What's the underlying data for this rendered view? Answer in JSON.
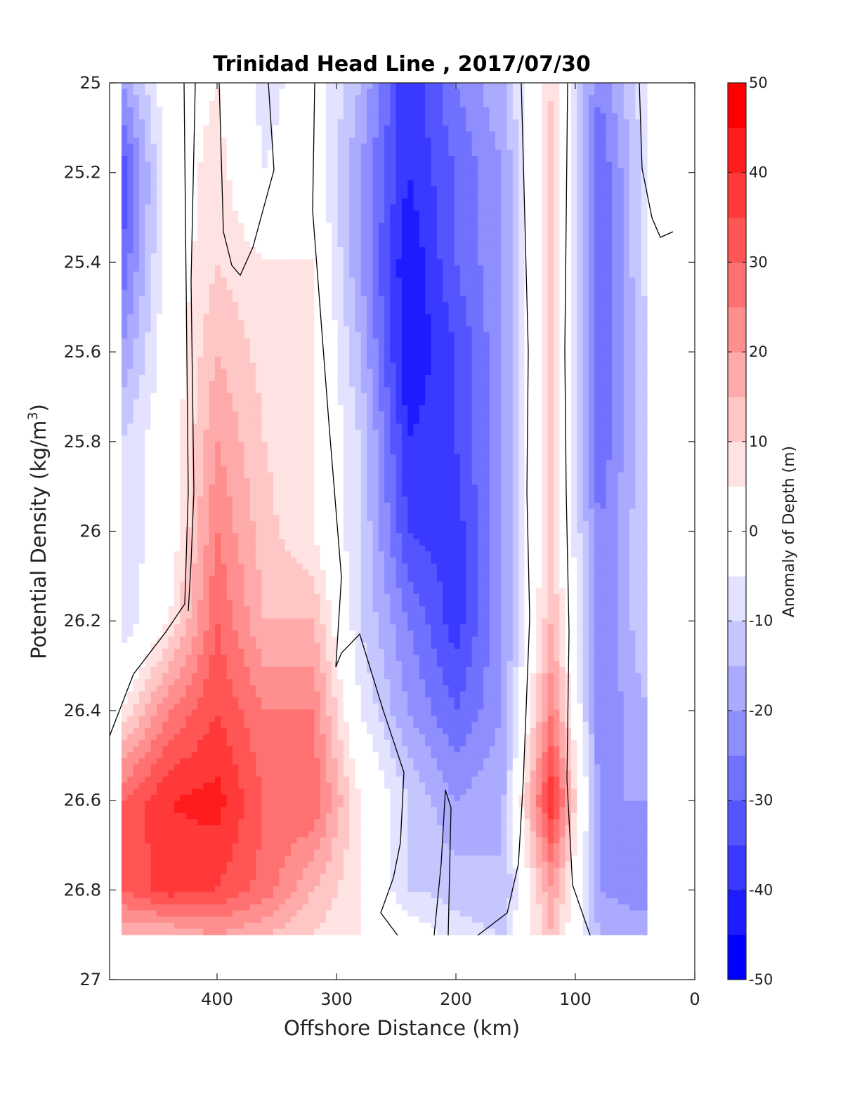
{
  "chart_data": {
    "type": "heatmap",
    "title": "Trinidad Head Line , 2017/07/30",
    "xlabel": "Offshore Distance (km)",
    "ylabel": "Potential Density (kg/m",
    "ylabel_sup": "3",
    "ylabel_close": ")",
    "colorbar_label": "Anomaly of Depth (m)",
    "xlim": [
      490,
      0
    ],
    "ylim": [
      25,
      27
    ],
    "x_ticks": [
      "400",
      "300",
      "200",
      "100",
      "0"
    ],
    "y_ticks": [
      "25",
      "25.2",
      "25.4",
      "25.6",
      "25.8",
      "26",
      "26.2",
      "26.4",
      "26.6",
      "26.8",
      "27"
    ],
    "colorbar_ticks": [
      "50",
      "40",
      "30",
      "20",
      "10",
      "0",
      "-10",
      "-20",
      "-30",
      "-40",
      "-50"
    ],
    "clim": [
      -50,
      50
    ],
    "contour_interval": 5,
    "x": [
      480,
      440,
      400,
      360,
      320,
      280,
      240,
      200,
      160,
      120,
      80,
      40
    ],
    "y": [
      25.0,
      25.2,
      25.4,
      25.6,
      25.8,
      26.0,
      26.2,
      26.4,
      26.6,
      26.8,
      26.9
    ],
    "z": [
      [
        -20,
        0,
        5,
        -8,
        0,
        -15,
        -40,
        -25,
        -15,
        10,
        -25,
        -5
      ],
      [
        -35,
        0,
        8,
        -5,
        0,
        -20,
        -40,
        -30,
        -20,
        12,
        -30,
        -8
      ],
      [
        -30,
        0,
        10,
        5,
        5,
        -20,
        -45,
        -30,
        -20,
        12,
        -30,
        -8
      ],
      [
        -20,
        0,
        15,
        8,
        5,
        -15,
        -45,
        -35,
        -20,
        12,
        -30,
        -10
      ],
      [
        -10,
        0,
        20,
        10,
        5,
        -10,
        -40,
        -35,
        -20,
        12,
        -30,
        -10
      ],
      [
        -10,
        0,
        25,
        12,
        5,
        -10,
        -35,
        -38,
        -20,
        12,
        -25,
        -10
      ],
      [
        -10,
        5,
        30,
        15,
        15,
        -10,
        -25,
        -38,
        -20,
        15,
        -25,
        -10
      ],
      [
        5,
        25,
        35,
        25,
        25,
        -5,
        -20,
        -30,
        -20,
        25,
        -25,
        -15
      ],
      [
        30,
        40,
        42,
        30,
        30,
        5,
        -10,
        -20,
        -15,
        40,
        -20,
        -20
      ],
      [
        30,
        38,
        35,
        28,
        15,
        5,
        -10,
        -12,
        -15,
        20,
        -20,
        -25
      ],
      [
        15,
        15,
        20,
        15,
        10,
        5,
        0,
        -8,
        -10,
        15,
        -15,
        -15
      ]
    ]
  }
}
